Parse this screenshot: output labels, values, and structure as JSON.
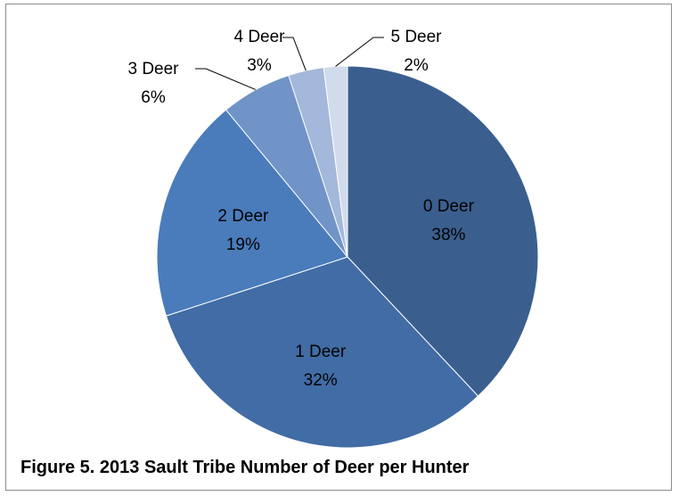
{
  "figure": {
    "caption": "Figure 5. 2013 Sault Tribe Number of Deer per Hunter"
  },
  "chart_data": {
    "type": "pie",
    "title": "",
    "categories": [
      "0 Deer",
      "1 Deer",
      "2 Deer",
      "3 Deer",
      "4 Deer",
      "5 Deer"
    ],
    "values": [
      38,
      32,
      19,
      6,
      3,
      2
    ],
    "value_labels": [
      "38%",
      "32%",
      "19%",
      "6%",
      "3%",
      "2%"
    ],
    "colors": [
      "#3a5f8e",
      "#416ca5",
      "#4a7cbb",
      "#7094c7",
      "#a3b8da",
      "#d0dbec"
    ],
    "start_angle_deg": 0,
    "direction": "clockwise",
    "legend": "none",
    "data_labels": "category and percentage"
  }
}
